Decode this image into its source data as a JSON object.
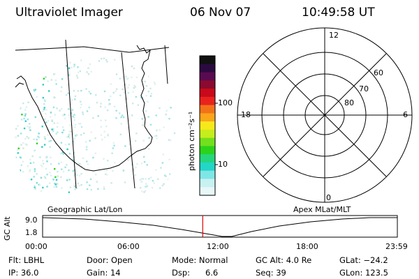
{
  "header": {
    "instrument": "Ultraviolet Imager",
    "date": "06 Nov 07",
    "time": "10:49:58 UT"
  },
  "colorbar": {
    "unit_label": "photon cm⁻²s⁻¹",
    "tick_labels": [
      "100",
      "10"
    ],
    "colors": [
      "#111111",
      "#2a0a40",
      "#5a0a50",
      "#8a0a30",
      "#c80a1a",
      "#e8231e",
      "#f2721a",
      "#fba51b",
      "#f7e81b",
      "#c6ed1c",
      "#72e01c",
      "#2bd31c",
      "#26d67c",
      "#23d6c8",
      "#7fe6e6",
      "#c8f1f1",
      "#e8f7f7"
    ]
  },
  "polar_plot": {
    "mlt_labels": {
      "top": "12",
      "left": "18",
      "right": "6",
      "bottom": "0"
    },
    "mlat_labels": [
      "60",
      "70",
      "80"
    ]
  },
  "timeline": {
    "left_label": "Geographic Lat/Lon",
    "right_label": "Apex MLat/MLT",
    "y_axis_label": "GC Alt",
    "y_ticks": [
      "9.0",
      "1.8"
    ],
    "x_ticks": [
      "00:00",
      "06:00",
      "12:00",
      "18:00",
      "23:59"
    ],
    "current_time_fraction": 0.4514
  },
  "status": {
    "row1": [
      {
        "key": "flt",
        "text": "Flt: LBHL"
      },
      {
        "key": "door",
        "text": "Door: Open"
      },
      {
        "key": "mode",
        "text": "Mode: Normal"
      },
      {
        "key": "gcalt",
        "text": "GC Alt: 4.0 Re"
      },
      {
        "key": "glat",
        "text": "GLat: −24.2"
      }
    ],
    "row2": [
      {
        "key": "ip",
        "text": "IP: 36.0"
      },
      {
        "key": "gain",
        "text": "Gain: 14"
      },
      {
        "key": "dsp",
        "text": "Dsp:      6.6"
      },
      {
        "key": "seq",
        "text": "Seq: 39"
      },
      {
        "key": "glon",
        "text": "GLon: 123.5"
      }
    ]
  },
  "colors": {
    "accent_red": "#e00000"
  }
}
